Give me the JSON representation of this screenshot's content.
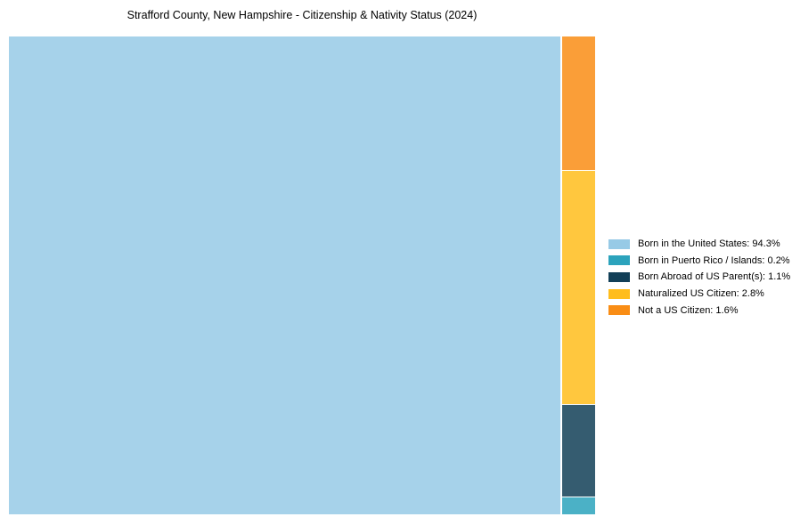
{
  "title": "Strafford County, New Hampshire - Citizenship & Nativity Status (2024)",
  "chart_data": {
    "type": "treemap",
    "title": "Strafford County, New Hampshire - Citizenship & Nativity Status (2024)",
    "categories": [
      "Born in the United States",
      "Born in Puerto Rico / Islands",
      "Born Abroad of US Parent(s)",
      "Naturalized US Citizen",
      "Not a US Citizen"
    ],
    "values": [
      94.3,
      0.2,
      1.1,
      2.8,
      1.6
    ],
    "unit": "%",
    "colors": [
      "#97CAE6",
      "#2CA3BC",
      "#123F57",
      "#FFBD1C",
      "#F98D15"
    ],
    "block_opacity": 0.85,
    "legend_position": "right",
    "legend_labels": [
      "Born in the United States: 94.3%",
      "Born in Puerto Rico / Islands: 0.2%",
      "Born Abroad of US Parent(s): 1.1%",
      "Naturalized US Citizen: 2.8%",
      "Not a US Citizen: 1.6%"
    ],
    "layout": {
      "main_block_index": 0,
      "side_column_order_top_to_bottom": [
        4,
        3,
        2,
        1
      ],
      "grid": "off",
      "axes": "none"
    }
  }
}
